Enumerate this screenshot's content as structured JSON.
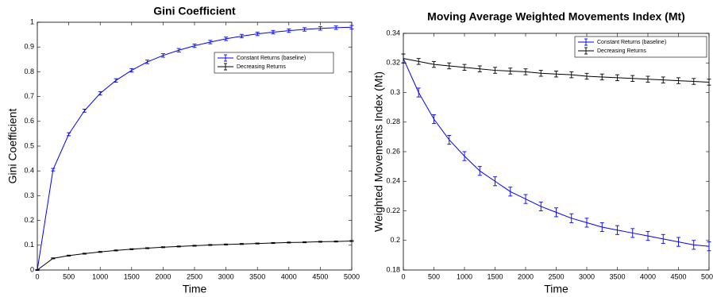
{
  "chart_data": [
    {
      "type": "line",
      "title": "Gini Coefficient",
      "x_label": "Time",
      "y_label": "Gini Coefficient",
      "x": [
        0,
        250,
        500,
        750,
        1000,
        1250,
        1500,
        1750,
        2000,
        2250,
        2500,
        2750,
        3000,
        3250,
        3500,
        3750,
        4000,
        4250,
        4500,
        4750,
        5000
      ],
      "series": [
        {
          "name": "Constant Returns (baseline)",
          "color": "#0000ff",
          "values": [
            0,
            0.405,
            0.548,
            0.643,
            0.713,
            0.765,
            0.806,
            0.84,
            0.866,
            0.887,
            0.905,
            0.92,
            0.933,
            0.944,
            0.953,
            0.96,
            0.966,
            0.971,
            0.975,
            0.978,
            0.98
          ],
          "errors": [
            0.002,
            0.005,
            0.006,
            0.006,
            0.007,
            0.007,
            0.007,
            0.007,
            0.007,
            0.007,
            0.007,
            0.007,
            0.007,
            0.007,
            0.007,
            0.007,
            0.007,
            0.007,
            0.007,
            0.007,
            0.007
          ]
        },
        {
          "name": "Decreasing Returns",
          "color": "#000000",
          "values": [
            0,
            0.047,
            0.058,
            0.066,
            0.073,
            0.079,
            0.084,
            0.088,
            0.092,
            0.095,
            0.098,
            0.101,
            0.103,
            0.105,
            0.107,
            0.109,
            0.111,
            0.112,
            0.114,
            0.115,
            0.117
          ],
          "errors": [
            0.001,
            0.002,
            0.002,
            0.002,
            0.002,
            0.002,
            0.002,
            0.002,
            0.002,
            0.002,
            0.002,
            0.002,
            0.002,
            0.002,
            0.002,
            0.002,
            0.002,
            0.002,
            0.002,
            0.002,
            0.002
          ]
        }
      ],
      "xlim": [
        0,
        5000
      ],
      "xticks": [
        0,
        500,
        1000,
        1500,
        2000,
        2500,
        3000,
        3500,
        4000,
        4500,
        5000
      ],
      "ylim": [
        0,
        1
      ],
      "yticks": [
        0,
        0.1,
        0.2,
        0.3,
        0.4,
        0.5,
        0.6,
        0.7,
        0.8,
        0.9,
        1
      ],
      "legend_position": "upper right"
    },
    {
      "type": "line",
      "title": "Moving Average Weighted Movements Index (Mt)",
      "x_label": "Time",
      "y_label": "Weighted Movements Index (Mt)",
      "x": [
        0,
        250,
        500,
        750,
        1000,
        1250,
        1500,
        1750,
        2000,
        2250,
        2500,
        2750,
        3000,
        3250,
        3500,
        3750,
        4000,
        4250,
        4500,
        4750,
        5000
      ],
      "series": [
        {
          "name": "Constant Returns (baseline)",
          "color": "#0000ff",
          "values": [
            0.323,
            0.3,
            0.282,
            0.268,
            0.257,
            0.247,
            0.24,
            0.233,
            0.228,
            0.223,
            0.219,
            0.215,
            0.212,
            0.209,
            0.207,
            0.205,
            0.203,
            0.201,
            0.199,
            0.197,
            0.196
          ],
          "errors": [
            0.003,
            0.003,
            0.003,
            0.003,
            0.003,
            0.003,
            0.003,
            0.003,
            0.003,
            0.003,
            0.003,
            0.003,
            0.003,
            0.003,
            0.003,
            0.003,
            0.003,
            0.003,
            0.003,
            0.003,
            0.003
          ]
        },
        {
          "name": "Decreasing Returns",
          "color": "#000000",
          "values": [
            0.323,
            0.321,
            0.319,
            0.318,
            0.317,
            0.316,
            0.315,
            0.3145,
            0.314,
            0.313,
            0.3125,
            0.312,
            0.311,
            0.3105,
            0.31,
            0.3095,
            0.309,
            0.3085,
            0.308,
            0.3075,
            0.307
          ],
          "errors": [
            0.003,
            0.002,
            0.002,
            0.002,
            0.002,
            0.002,
            0.002,
            0.002,
            0.002,
            0.002,
            0.002,
            0.002,
            0.002,
            0.002,
            0.002,
            0.002,
            0.002,
            0.002,
            0.002,
            0.002,
            0.002
          ]
        }
      ],
      "xlim": [
        0,
        5000
      ],
      "xticks": [
        0,
        500,
        1000,
        1500,
        2000,
        2500,
        3000,
        3500,
        4000,
        4500,
        5000
      ],
      "ylim": [
        0.18,
        0.34
      ],
      "yticks": [
        0.18,
        0.2,
        0.22,
        0.24,
        0.26,
        0.28,
        0.3,
        0.32,
        0.34
      ],
      "legend_position": "upper right"
    }
  ]
}
